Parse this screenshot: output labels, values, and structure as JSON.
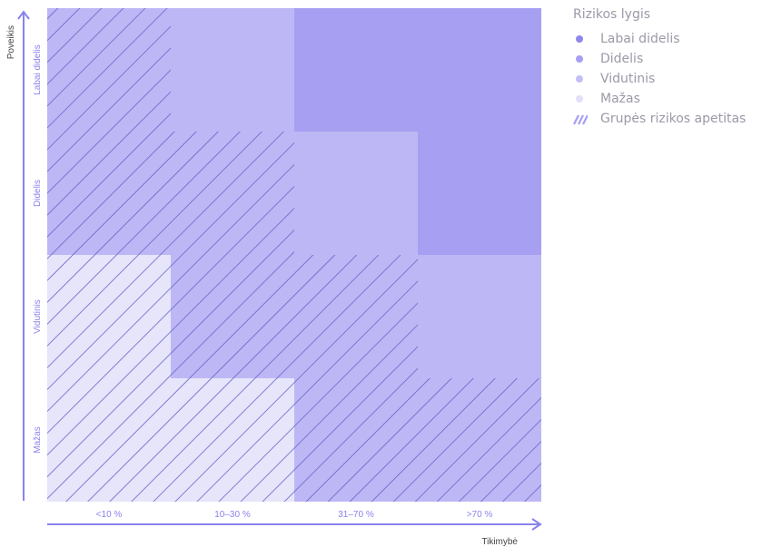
{
  "chart_data": {
    "type": "heatmap",
    "x_axis": {
      "label": "Tikimybė",
      "categories": [
        "<10 %",
        "10–30 %",
        "31–70 %",
        ">70 %"
      ]
    },
    "y_axis": {
      "label": "Poveikis",
      "categories": [
        "Mažas",
        "Vidutinis",
        "Didelis",
        "Labai didelis"
      ]
    },
    "levels": [
      {
        "key": "labai_didelis",
        "label": "Labai didelis",
        "color": "#a69ff2"
      },
      {
        "key": "didelis",
        "label": "Didelis",
        "color": "#a69ff2"
      },
      {
        "key": "vidutinis",
        "label": "Vidutinis",
        "color": "#bdb8f5"
      },
      {
        "key": "mazas",
        "label": "Mažas",
        "color": "#e6e5fa"
      }
    ],
    "legend_dot_colors": [
      "#8f87ec",
      "#a69ff2",
      "#c3bff6",
      "#e2e1f9"
    ],
    "hatch_color": "#6a62c9",
    "axis_color": "#8a82ec",
    "cells": [
      {
        "y": "Labai didelis",
        "values": [
          "vidutinis",
          "vidutinis",
          "didelis",
          "didelis"
        ]
      },
      {
        "y": "Didelis",
        "values": [
          "vidutinis",
          "vidutinis",
          "vidutinis",
          "didelis"
        ]
      },
      {
        "y": "Vidutinis",
        "values": [
          "mazas",
          "vidutinis",
          "vidutinis",
          "vidutinis"
        ]
      },
      {
        "y": "Mažas",
        "values": [
          "mazas",
          "mazas",
          "vidutinis",
          "vidutinis"
        ]
      }
    ],
    "appetite": [
      {
        "y": "Labai didelis",
        "hatched": [
          true,
          false,
          false,
          false
        ]
      },
      {
        "y": "Didelis",
        "hatched": [
          true,
          true,
          false,
          false
        ]
      },
      {
        "y": "Vidutinis",
        "hatched": [
          true,
          true,
          true,
          false
        ]
      },
      {
        "y": "Mažas",
        "hatched": [
          true,
          true,
          true,
          true
        ]
      }
    ]
  },
  "legend": {
    "title": "Rizikos lygis",
    "items": [
      "Labai didelis",
      "Didelis",
      "Vidutinis",
      "Mažas"
    ],
    "hatch_label": "Grupės rizikos apetitas"
  }
}
